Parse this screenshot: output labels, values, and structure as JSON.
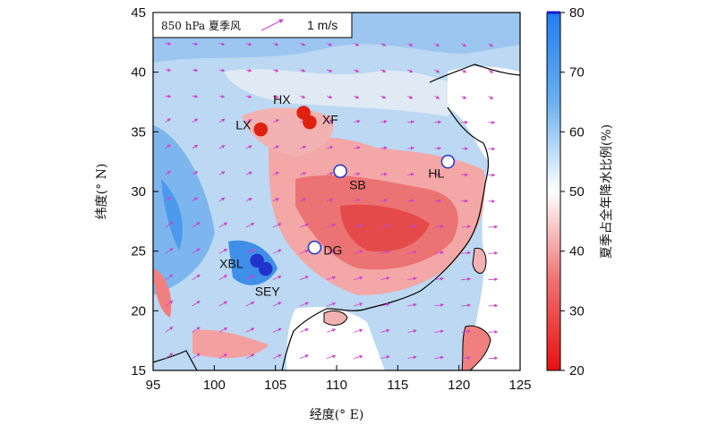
{
  "legend": {
    "text": "850 hPa 夏季风",
    "ref_label": "1 m/s"
  },
  "x_axis": {
    "label": "经度(°  E)",
    "ticks": [
      "95",
      "100",
      "105",
      "110",
      "115",
      "120",
      "125"
    ],
    "range": [
      95,
      125
    ]
  },
  "y_axis": {
    "label": "纬度(°  N)",
    "ticks": [
      "15",
      "20",
      "25",
      "30",
      "35",
      "40",
      "45"
    ],
    "range": [
      15,
      45
    ]
  },
  "colorbar": {
    "label": "夏季占全年降水比例(%)",
    "ticks": [
      "20",
      "30",
      "40",
      "50",
      "60",
      "70",
      "80"
    ],
    "range": [
      20,
      80
    ],
    "colors": {
      "low": "#e81010",
      "mid": "#ffffff",
      "high": "#1f7ef0"
    }
  },
  "stations": [
    {
      "id": "LX",
      "lon": 103.8,
      "lat": 35.2,
      "type": "red"
    },
    {
      "id": "HX",
      "lon": 107.3,
      "lat": 36.6,
      "type": "red"
    },
    {
      "id": "XF",
      "lon": 107.8,
      "lat": 35.8,
      "type": "red"
    },
    {
      "id": "SB",
      "lon": 110.3,
      "lat": 31.7,
      "type": "open"
    },
    {
      "id": "HL",
      "lon": 119.1,
      "lat": 32.5,
      "type": "open"
    },
    {
      "id": "DG",
      "lon": 108.2,
      "lat": 25.3,
      "type": "open"
    },
    {
      "id": "XBL",
      "lon": 103.5,
      "lat": 24.2,
      "type": "blue"
    },
    {
      "id": "SEY",
      "lon": 104.2,
      "lat": 23.5,
      "type": "blue"
    }
  ],
  "colors": {
    "wind_vector": "#cc44cc",
    "station_red": "#e02010",
    "station_blue": "#2233cc",
    "station_open": "#2233cc"
  }
}
